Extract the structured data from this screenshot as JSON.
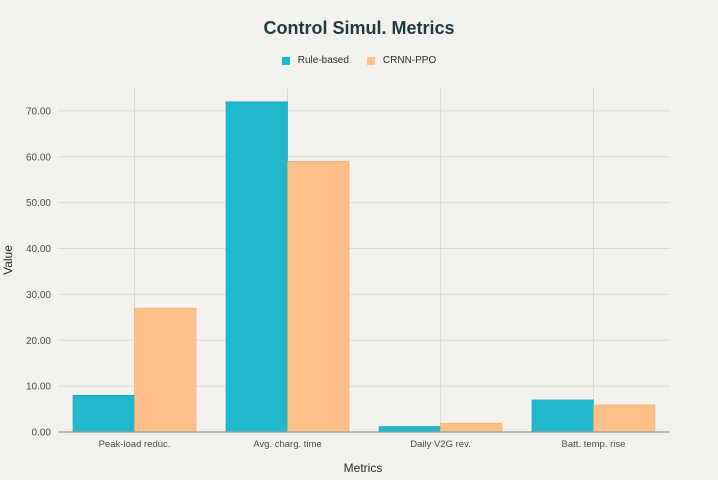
{
  "chart_data": {
    "type": "bar",
    "title": "Control Simul. Metrics",
    "xlabel": "Metrics",
    "ylabel": "Value",
    "categories": [
      "Peak-load reduc.",
      "Avg. charg. time",
      "Daily V2G rev.",
      "Batt. temp. rise"
    ],
    "series": [
      {
        "name": "Rule-based",
        "color": "#21b8cb",
        "values": [
          8.0,
          72.0,
          1.2,
          7.0
        ]
      },
      {
        "name": "CRNN-PPO",
        "color": "#fdc088",
        "values": [
          27.0,
          59.0,
          1.9,
          5.9
        ]
      }
    ],
    "ylim": [
      0,
      75
    ],
    "yticks": [
      "0.00",
      "10.00",
      "20.00",
      "30.00",
      "40.00",
      "50.00",
      "60.00",
      "70.00"
    ],
    "legend_position": "top-center",
    "grid": true
  }
}
